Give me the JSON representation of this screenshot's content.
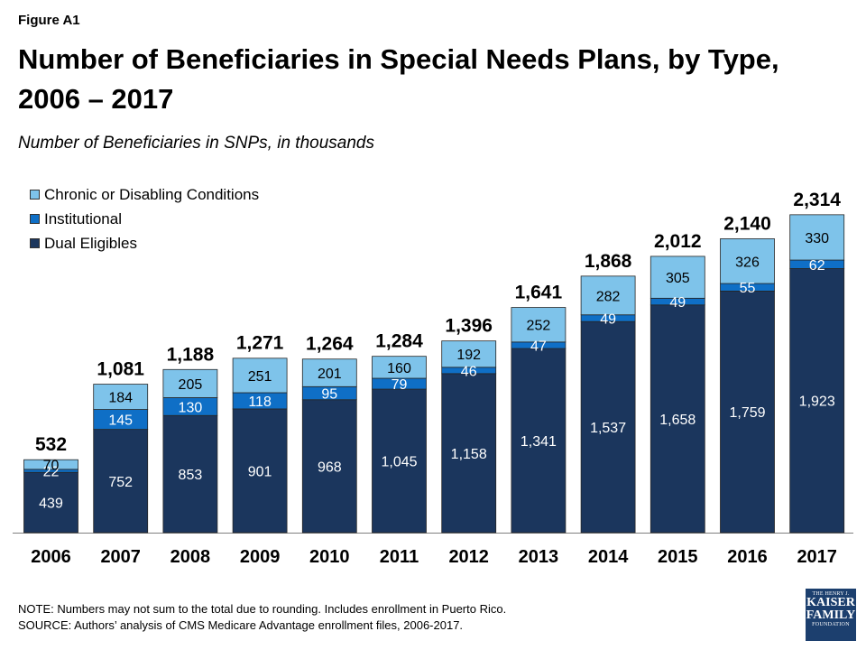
{
  "figure_label": "Figure A1",
  "title": "Number of Beneficiaries in Special Needs Plans, by Type, 2006 – 2017",
  "subtitle": "Number of Beneficiaries in SNPs, in thousands",
  "note": "NOTE:  Numbers may not sum to the total due to rounding.  Includes enrollment in Puerto Rico.",
  "source": "SOURCE:  Authors’ analysis of CMS Medicare Advantage enrollment files, 2006-2017.",
  "logo": {
    "line1": "THE HENRY J.",
    "line2": "KAISER",
    "line3": "FAMILY",
    "line4": "FOUNDATION"
  },
  "colors": {
    "dual": "#1b365d",
    "institutional": "#0f6fc6",
    "chronic": "#7ec3ea"
  },
  "chart_data": {
    "type": "bar",
    "stacked": true,
    "title": "Number of Beneficiaries in Special Needs Plans, by Type, 2006 – 2017",
    "subtitle": "Number of Beneficiaries in SNPs, in thousands",
    "xlabel": "",
    "ylabel": "",
    "ylim": [
      0,
      2314
    ],
    "grid": false,
    "legend_position": "top-left",
    "categories": [
      "2006",
      "2007",
      "2008",
      "2009",
      "2010",
      "2011",
      "2012",
      "2013",
      "2014",
      "2015",
      "2016",
      "2017"
    ],
    "series": [
      {
        "name": "Dual Eligibles",
        "color": "#1b365d",
        "values": [
          439,
          752,
          853,
          901,
          968,
          1045,
          1158,
          1341,
          1537,
          1658,
          1759,
          1923
        ],
        "labels": [
          "439",
          "752",
          "853",
          "901",
          "968",
          "1,045",
          "1,158",
          "1,341",
          "1,537",
          "1,658",
          "1,759",
          "1,923"
        ]
      },
      {
        "name": "Institutional",
        "color": "#0f6fc6",
        "values": [
          22,
          145,
          130,
          118,
          95,
          79,
          46,
          47,
          49,
          49,
          55,
          62
        ],
        "labels": [
          "22",
          "145",
          "130",
          "118",
          "95",
          "79",
          "46",
          "47",
          "49",
          "49",
          "55",
          "62"
        ]
      },
      {
        "name": "Chronic or Disabling Conditions",
        "color": "#7ec3ea",
        "values": [
          70,
          184,
          205,
          251,
          201,
          160,
          192,
          252,
          282,
          305,
          326,
          330
        ],
        "labels": [
          "70",
          "184",
          "205",
          "251",
          "201",
          "160",
          "192",
          "252",
          "282",
          "305",
          "326",
          "330"
        ]
      }
    ],
    "totals": [
      532,
      1081,
      1188,
      1271,
      1264,
      1284,
      1396,
      1641,
      1868,
      2012,
      2140,
      2314
    ],
    "total_labels": [
      "532",
      "1,081",
      "1,188",
      "1,271",
      "1,264",
      "1,284",
      "1,396",
      "1,641",
      "1,868",
      "2,012",
      "2,140",
      "2,314"
    ]
  }
}
